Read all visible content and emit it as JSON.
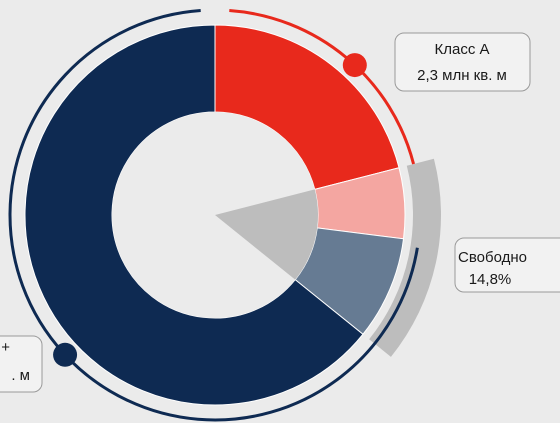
{
  "chart_data": {
    "type": "donut",
    "segments": [
      {
        "color": "#e8291c",
        "value": 21
      },
      {
        "color": "#f4a6a1",
        "value": 6
      },
      {
        "color": "#667b93",
        "value": 8.8
      },
      {
        "color": "#0e2a52",
        "value": 64.2
      }
    ],
    "free": {
      "title": "Свободно",
      "value": 14.8,
      "value_label": "14,8%",
      "color": "#bdbdbd"
    },
    "annotations": [
      {
        "title": "Класс А",
        "text": "2,3 млн кв. м",
        "color": "#e8291c"
      },
      {
        "title": "+",
        "text": ". м",
        "color": "#0e2a52"
      }
    ]
  }
}
